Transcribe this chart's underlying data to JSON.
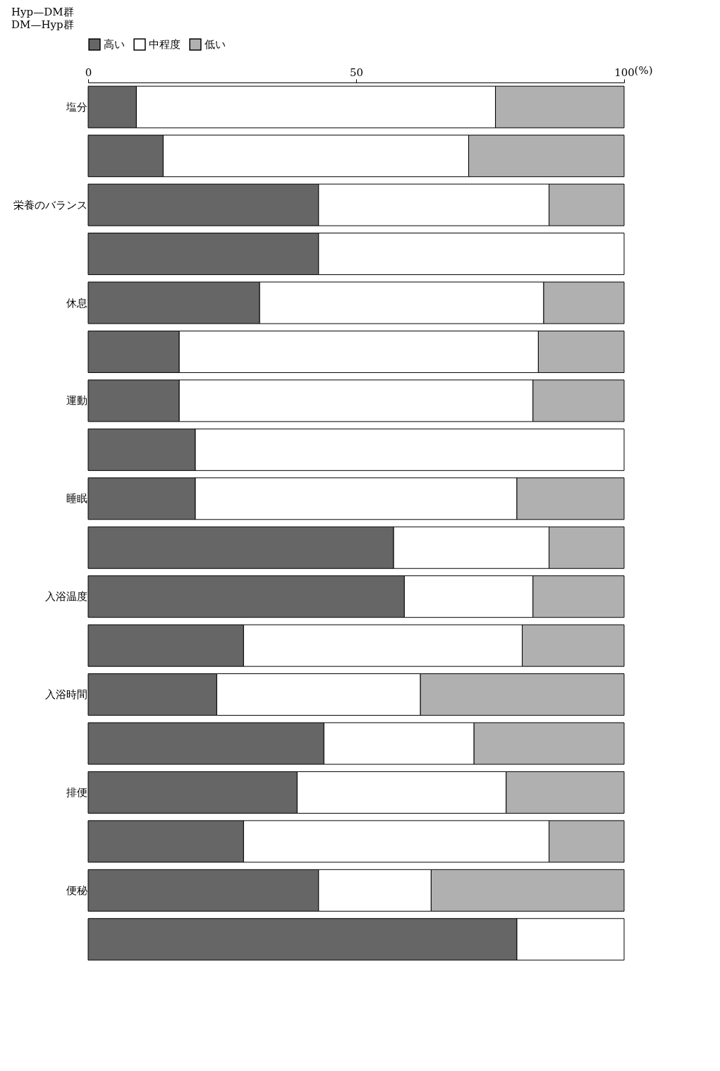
{
  "chart_data": {
    "type": "bar",
    "orientation": "horizontal",
    "stacked": true,
    "categories": [
      "塩分",
      null,
      "栄養のバランス",
      null,
      "休息",
      null,
      "運動",
      null,
      "睡眠",
      null,
      "入浴温度",
      null,
      "入浴時間",
      null,
      "排便",
      null,
      "便秘",
      null
    ],
    "series": [
      {
        "name": "高い",
        "color": "#666666",
        "values": [
          9,
          14,
          43,
          43,
          32,
          17,
          17,
          20,
          20,
          57,
          59,
          29,
          24,
          44,
          39,
          29,
          43,
          80
        ]
      },
      {
        "name": "中程度",
        "color": "#ffffff",
        "values": [
          67,
          57,
          43,
          57,
          53,
          67,
          66,
          80,
          60,
          29,
          24,
          52,
          38,
          28,
          39,
          57,
          21,
          20
        ]
      },
      {
        "name": "低い",
        "color": "#b0b0b0",
        "values": [
          24,
          29,
          14,
          0,
          15,
          16,
          17,
          0,
          20,
          14,
          17,
          19,
          38,
          28,
          22,
          14,
          36,
          0
        ]
      }
    ],
    "xlim": [
      0,
      100
    ],
    "xticks": [
      0,
      50,
      100
    ],
    "xlabel": "(%)",
    "legend": "top",
    "grid": false,
    "annotations": [
      "Hyp—DM群",
      "DM—Hyp群"
    ]
  }
}
